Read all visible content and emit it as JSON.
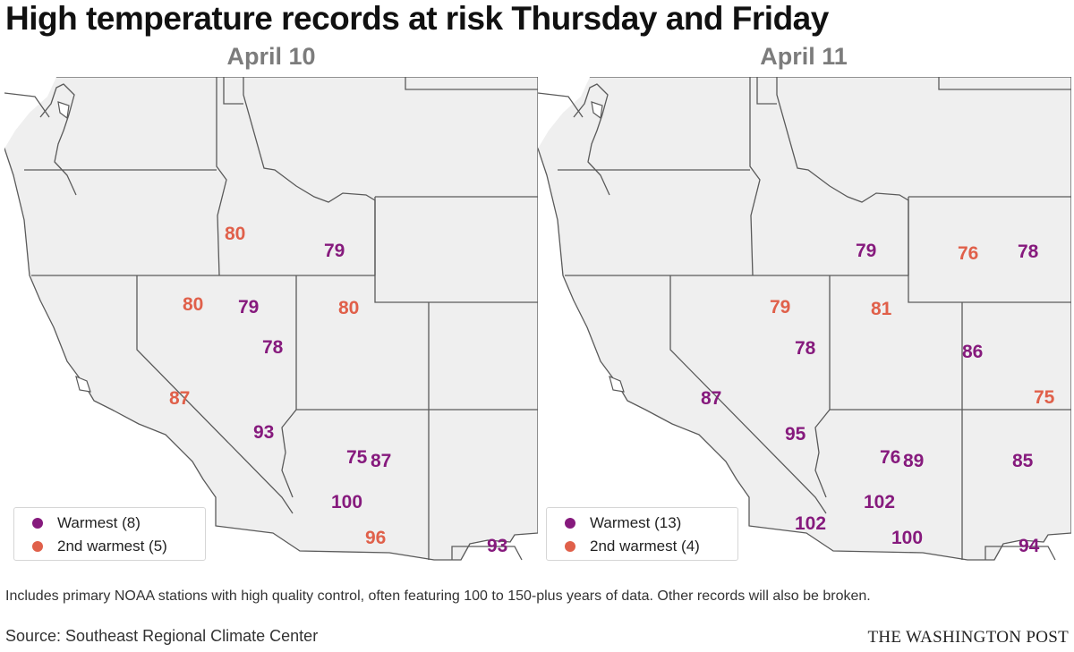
{
  "title": "High temperature records at risk Thursday and Friday",
  "colors": {
    "warmest": "#861a7d",
    "second": "#e0604a",
    "land": "#efefef",
    "border": "#5a5a5a",
    "water": "#ffffff"
  },
  "panels": [
    {
      "title": "April 10",
      "legend": {
        "warmest": "Warmest (8)",
        "second": "2nd warmest (5)"
      },
      "labels": [
        {
          "text": "80",
          "kind": "second"
        },
        {
          "text": "79",
          "kind": "warmest"
        },
        {
          "text": "80",
          "kind": "second"
        },
        {
          "text": "79",
          "kind": "warmest"
        },
        {
          "text": "80",
          "kind": "second"
        },
        {
          "text": "78",
          "kind": "warmest"
        },
        {
          "text": "87",
          "kind": "second"
        },
        {
          "text": "93",
          "kind": "warmest"
        },
        {
          "text": "75",
          "kind": "warmest"
        },
        {
          "text": "87",
          "kind": "warmest"
        },
        {
          "text": "100",
          "kind": "warmest"
        },
        {
          "text": "96",
          "kind": "second"
        },
        {
          "text": "93",
          "kind": "warmest"
        }
      ]
    },
    {
      "title": "April 11",
      "legend": {
        "warmest": "Warmest (13)",
        "second": "2nd warmest (4)"
      },
      "labels": [
        {
          "text": "79",
          "kind": "warmest"
        },
        {
          "text": "76",
          "kind": "second"
        },
        {
          "text": "78",
          "kind": "warmest"
        },
        {
          "text": "79",
          "kind": "second"
        },
        {
          "text": "81",
          "kind": "second"
        },
        {
          "text": "78",
          "kind": "warmest"
        },
        {
          "text": "86",
          "kind": "warmest"
        },
        {
          "text": "87",
          "kind": "warmest"
        },
        {
          "text": "75",
          "kind": "second"
        },
        {
          "text": "95",
          "kind": "warmest"
        },
        {
          "text": "76",
          "kind": "warmest"
        },
        {
          "text": "89",
          "kind": "warmest"
        },
        {
          "text": "85",
          "kind": "warmest"
        },
        {
          "text": "102",
          "kind": "warmest"
        },
        {
          "text": "102",
          "kind": "warmest"
        },
        {
          "text": "100",
          "kind": "warmest"
        },
        {
          "text": "94",
          "kind": "warmest"
        }
      ]
    }
  ],
  "note": "Includes primary NOAA stations with high quality control, often featuring 100 to 150-plus years of data. Other records will also be broken.",
  "source": "Source: Southeast Regional Climate Center",
  "brand": "THE WASHINGTON POST"
}
